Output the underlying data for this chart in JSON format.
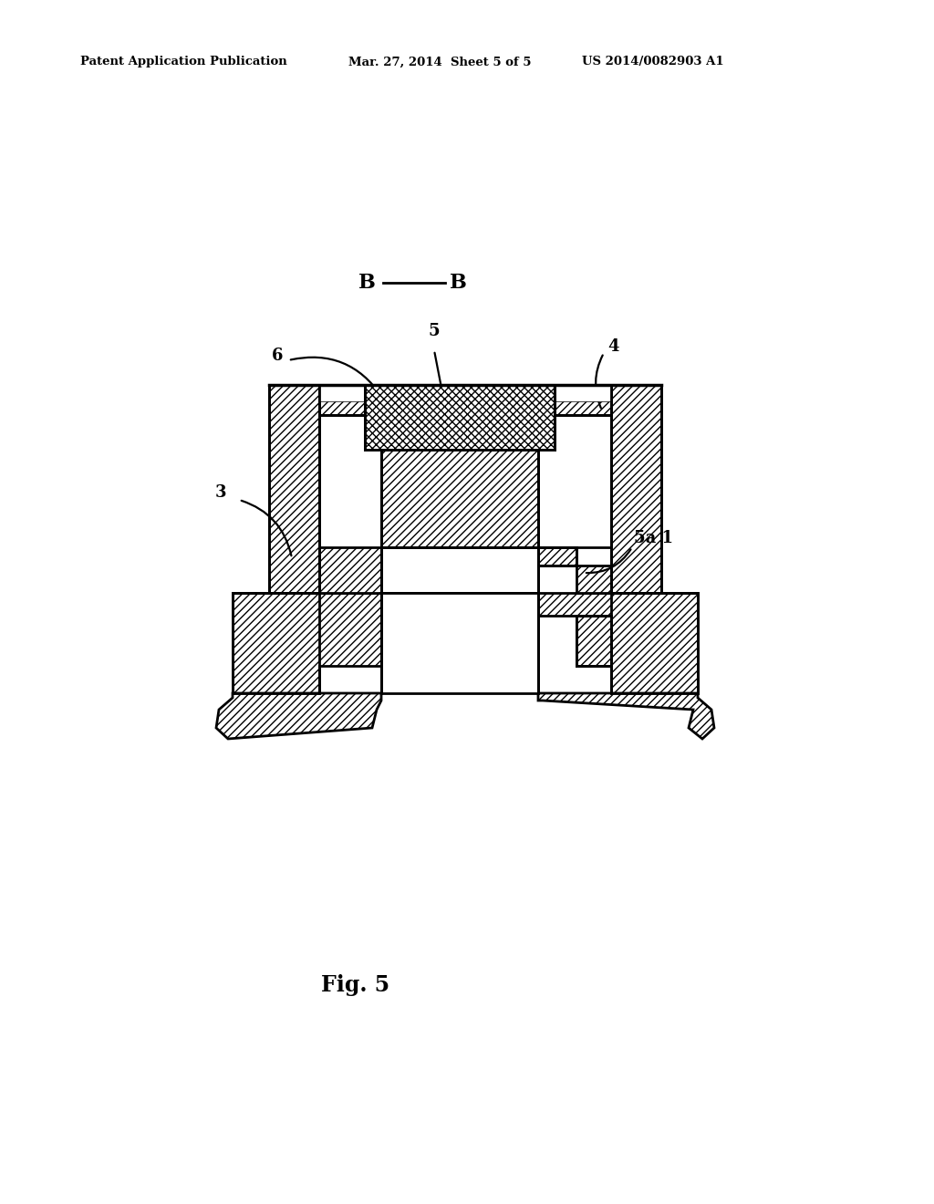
{
  "bg_color": "#ffffff",
  "line_color": "#000000",
  "header_left": "Patent Application Publication",
  "header_mid": "Mar. 27, 2014  Sheet 5 of 5",
  "header_right": "US 2014/0082903 A1",
  "fig_label": "Fig. 5"
}
